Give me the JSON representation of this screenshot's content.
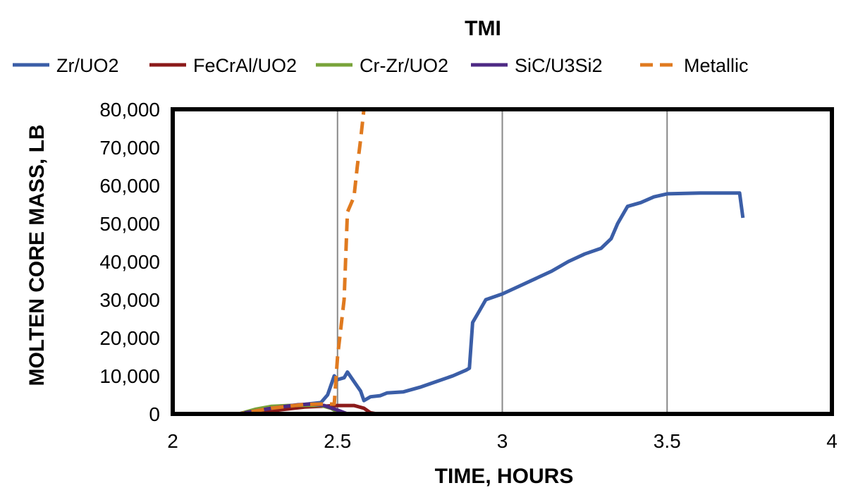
{
  "chart_data": {
    "type": "line",
    "title": "TMI",
    "xlabel": "TIME,  HOURS",
    "ylabel": "MOLTEN CORE MASS, LB",
    "xlim": [
      2,
      4
    ],
    "ylim": [
      0,
      80000
    ],
    "x_ticks": [
      "2",
      "2.5",
      "3",
      "3.5",
      "4"
    ],
    "y_ticks": [
      "0",
      "10,000",
      "20,000",
      "30,000",
      "40,000",
      "50,000",
      "60,000",
      "70,000",
      "80,000"
    ],
    "grid": "vertical",
    "legend_position": "top",
    "series": [
      {
        "name": "Zr/UO2",
        "color": "#3b5ea7",
        "style": "solid",
        "points": [
          [
            2.0,
            0
          ],
          [
            2.2,
            0
          ],
          [
            2.25,
            500
          ],
          [
            2.3,
            1500
          ],
          [
            2.4,
            2500
          ],
          [
            2.45,
            3000
          ],
          [
            2.47,
            5000
          ],
          [
            2.49,
            10000
          ],
          [
            2.5,
            9000
          ],
          [
            2.52,
            9500
          ],
          [
            2.53,
            11000
          ],
          [
            2.55,
            8500
          ],
          [
            2.57,
            6000
          ],
          [
            2.58,
            3500
          ],
          [
            2.6,
            4500
          ],
          [
            2.63,
            4800
          ],
          [
            2.65,
            5500
          ],
          [
            2.7,
            5800
          ],
          [
            2.75,
            7000
          ],
          [
            2.8,
            8500
          ],
          [
            2.85,
            10000
          ],
          [
            2.89,
            11500
          ],
          [
            2.9,
            12000
          ],
          [
            2.91,
            24000
          ],
          [
            2.93,
            27000
          ],
          [
            2.95,
            30000
          ],
          [
            3.0,
            31500
          ],
          [
            3.05,
            33500
          ],
          [
            3.1,
            35500
          ],
          [
            3.15,
            37500
          ],
          [
            3.2,
            40000
          ],
          [
            3.25,
            42000
          ],
          [
            3.3,
            43500
          ],
          [
            3.33,
            46000
          ],
          [
            3.35,
            50000
          ],
          [
            3.38,
            54500
          ],
          [
            3.42,
            55500
          ],
          [
            3.46,
            57000
          ],
          [
            3.5,
            57800
          ],
          [
            3.6,
            58000
          ],
          [
            3.72,
            58000
          ],
          [
            3.73,
            51500
          ]
        ]
      },
      {
        "name": "FeCrAl/UO2",
        "color": "#8b1a1a",
        "style": "solid",
        "points": [
          [
            2.0,
            0
          ],
          [
            2.22,
            0
          ],
          [
            2.3,
            800
          ],
          [
            2.4,
            1800
          ],
          [
            2.5,
            2200
          ],
          [
            2.55,
            2200
          ],
          [
            2.58,
            1500
          ],
          [
            2.6,
            300
          ],
          [
            2.62,
            0
          ],
          [
            4.0,
            0
          ]
        ]
      },
      {
        "name": "Cr-Zr/UO2",
        "color": "#79a33a",
        "style": "solid",
        "points": [
          [
            2.0,
            0
          ],
          [
            2.2,
            0
          ],
          [
            2.25,
            1200
          ],
          [
            2.3,
            2000
          ],
          [
            2.35,
            2200
          ],
          [
            2.4,
            2300
          ],
          [
            2.45,
            2200
          ],
          [
            2.48,
            1500
          ],
          [
            2.5,
            500
          ],
          [
            2.52,
            0
          ],
          [
            4.0,
            0
          ]
        ]
      },
      {
        "name": "SiC/U3Si2",
        "color": "#4e2a84",
        "style": "solid",
        "points": [
          [
            2.0,
            0
          ],
          [
            2.2,
            0
          ],
          [
            2.3,
            1500
          ],
          [
            2.38,
            2400
          ],
          [
            2.42,
            2600
          ],
          [
            2.46,
            2200
          ],
          [
            2.5,
            1000
          ],
          [
            2.53,
            0
          ],
          [
            4.0,
            0
          ]
        ]
      },
      {
        "name": "Metallic",
        "color": "#e07a1f",
        "style": "dashed",
        "points": [
          [
            2.0,
            0
          ],
          [
            2.2,
            0
          ],
          [
            2.3,
            1500
          ],
          [
            2.4,
            2500
          ],
          [
            2.46,
            2600
          ],
          [
            2.49,
            2600
          ],
          [
            2.5,
            15000
          ],
          [
            2.52,
            30000
          ],
          [
            2.53,
            53000
          ],
          [
            2.55,
            57000
          ],
          [
            2.56,
            65000
          ],
          [
            2.57,
            72000
          ],
          [
            2.58,
            80000
          ]
        ]
      }
    ]
  }
}
